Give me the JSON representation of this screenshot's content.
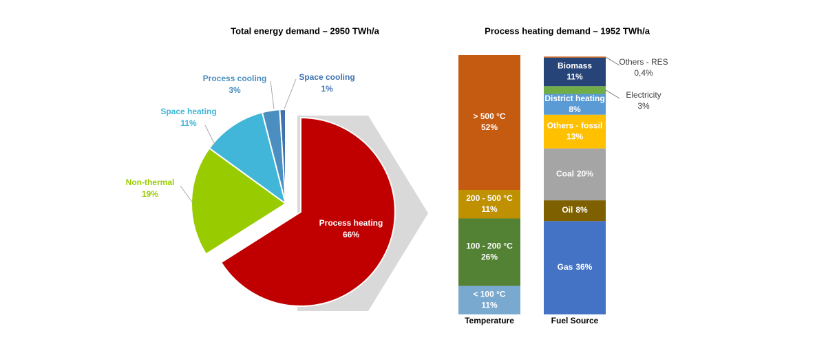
{
  "chart_data": [
    {
      "type": "pie",
      "title": "Total energy demand – 2950 TWh/a",
      "categories": [
        "Process heating",
        "Non-thermal",
        "Space heating",
        "Process cooling",
        "Space cooling"
      ],
      "values": [
        66,
        19,
        11,
        3,
        1
      ],
      "value_labels": [
        "66%",
        "19%",
        "11%",
        "3%",
        "1%"
      ],
      "colors": [
        "#c00000",
        "#99cc00",
        "#41b6d8",
        "#4a8fbf",
        "#3f72af"
      ],
      "label_colors": [
        "#ffffff",
        "#99cc00",
        "#41b6d8",
        "#4a8fbf",
        "#3f72af"
      ]
    },
    {
      "type": "stacked-bar",
      "title": "Process heating demand – 1952 TWh/a",
      "categories": [
        "Temperature",
        "Fuel Source"
      ],
      "ylim": [
        0,
        100
      ],
      "stacks": [
        [
          {
            "name": "< 100 °C",
            "value": 11,
            "value_label": "11%",
            "color": "#7aa9cf"
          },
          {
            "name": "100 - 200 °C",
            "value": 26,
            "value_label": "26%",
            "color": "#548235"
          },
          {
            "name": "200 - 500 °C",
            "value": 11,
            "value_label": "11%",
            "color": "#bf9000"
          },
          {
            "name": "> 500 °C",
            "value": 52,
            "value_label": "52%",
            "color": "#c55a11"
          }
        ],
        [
          {
            "name": "Gas",
            "value": 36,
            "value_label": "36%",
            "color": "#4472c4"
          },
          {
            "name": "Oil",
            "value": 8,
            "value_label": "8%",
            "color": "#7f6000"
          },
          {
            "name": "Coal",
            "value": 20,
            "value_label": "20%",
            "color": "#a5a5a5"
          },
          {
            "name": "Others - fossil",
            "value": 13,
            "value_label": "13%",
            "color": "#ffc000"
          },
          {
            "name": "District heating",
            "value": 8,
            "value_label": "8%",
            "color": "#5b9bd5"
          },
          {
            "name": "Electricity",
            "value": 3,
            "value_label": "3%",
            "color": "#70ad47"
          },
          {
            "name": "Biomass",
            "value": 11,
            "value_label": "11%",
            "color": "#264478"
          },
          {
            "name": "Others - RES",
            "value": 0.4,
            "value_label": "0,4%",
            "color": "#c55a11"
          }
        ]
      ]
    }
  ]
}
